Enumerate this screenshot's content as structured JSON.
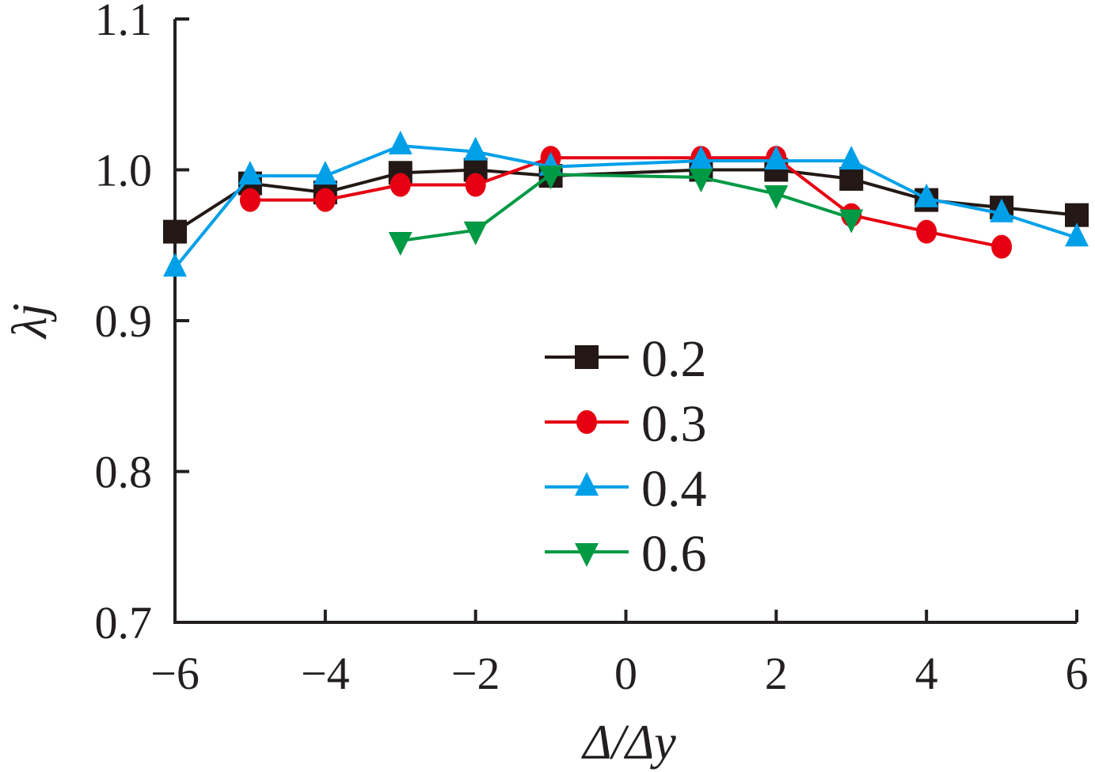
{
  "chart_data": {
    "type": "line",
    "title": "",
    "xlabel": "Δ/Δy",
    "ylabel": "λj",
    "xlim": [
      -6,
      6
    ],
    "ylim": [
      0.7,
      1.1
    ],
    "xticks": [
      "−6",
      "−4",
      "−2",
      "0",
      "2",
      "4",
      "6"
    ],
    "xtick_values": [
      -6,
      -4,
      -2,
      0,
      2,
      4,
      6
    ],
    "yticks": [
      "0.7",
      "0.8",
      "0.9",
      "1.0",
      "1.1"
    ],
    "ytick_values": [
      0.7,
      0.8,
      0.9,
      1.0,
      1.1
    ],
    "grid": false,
    "legend_position": "center",
    "series": [
      {
        "name": "0.2",
        "color": "#231815",
        "marker": "square",
        "x": [
          -6,
          -5,
          -4,
          -3,
          -2,
          -1,
          1,
          2,
          3,
          4,
          5,
          6
        ],
        "y": [
          0.959,
          0.991,
          0.985,
          0.998,
          1.0,
          0.996,
          1.0,
          1.0,
          0.994,
          0.98,
          0.975,
          0.97
        ]
      },
      {
        "name": "0.3",
        "color": "#e60012",
        "marker": "circle",
        "x": [
          -5,
          -4,
          -3,
          -2,
          -1,
          1,
          2,
          3,
          4,
          5
        ],
        "y": [
          0.98,
          0.98,
          0.99,
          0.99,
          1.008,
          1.008,
          1.008,
          0.97,
          0.959,
          0.949
        ]
      },
      {
        "name": "0.4",
        "color": "#00a0e9",
        "marker": "triangle-up",
        "x": [
          -6,
          -5,
          -4,
          -3,
          -2,
          -1,
          1,
          2,
          3,
          4,
          5,
          6
        ],
        "y": [
          0.935,
          0.996,
          0.996,
          1.016,
          1.012,
          1.002,
          1.006,
          1.006,
          1.006,
          0.981,
          0.971,
          0.955
        ]
      },
      {
        "name": "0.6",
        "color": "#009944",
        "marker": "triangle-down",
        "x": [
          -3,
          -2,
          -1,
          1,
          2,
          3
        ],
        "y": [
          0.953,
          0.96,
          0.997,
          0.995,
          0.984,
          0.968
        ]
      }
    ]
  }
}
